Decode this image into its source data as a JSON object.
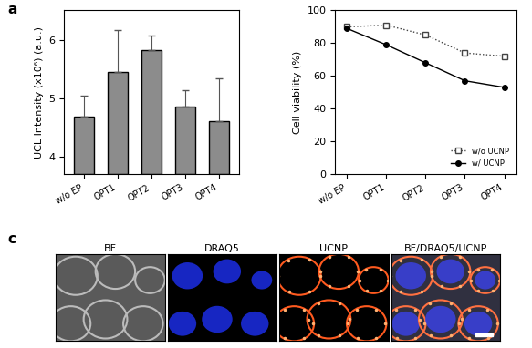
{
  "chart_data": [
    {
      "type": "bar",
      "title": "a",
      "categories": [
        "w/o EP",
        "OPT1",
        "OPT2",
        "OPT3",
        "OPT4"
      ],
      "values": [
        4.68,
        5.45,
        5.82,
        4.86,
        4.6
      ],
      "errors": [
        0.36,
        0.72,
        0.25,
        0.27,
        0.73
      ],
      "color": "#8c8c8c",
      "y_label": "UCL Intensity (x10⁶) (a.u.)",
      "ylim": [
        3.7,
        6.5
      ],
      "yticks": [
        4,
        5,
        6
      ]
    },
    {
      "type": "line",
      "categories": [
        "w/o EP",
        "OPT1",
        "OPT2",
        "OPT3",
        "OPT4"
      ],
      "series": [
        {
          "name": "w/o UCNP",
          "color": "#444444",
          "marker": "square",
          "line_style": "dotted",
          "values": [
            90,
            91,
            85,
            74,
            72
          ]
        },
        {
          "name": "w/ UCNP",
          "color": "#000000",
          "marker": "circle",
          "line_style": "solid",
          "values": [
            89,
            79,
            68,
            57,
            53
          ]
        }
      ],
      "y_label": "Cell viability (%)",
      "ylim": [
        0,
        100
      ],
      "yticks": [
        0,
        20,
        40,
        60,
        80,
        100
      ],
      "legend": "lower right"
    }
  ],
  "image_panel": {
    "label": "c",
    "titles": [
      "BF",
      "DRAQ5",
      "UCNP",
      "BF/DRAQ5/UCNP"
    ]
  }
}
